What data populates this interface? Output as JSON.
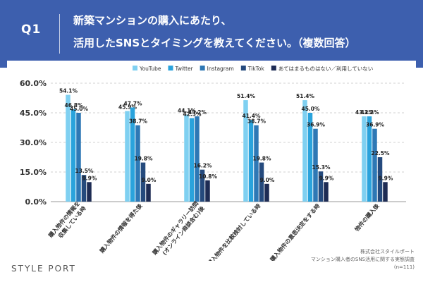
{
  "header": {
    "q_label": "Q1",
    "title_line1": "新築マンションの購入にあたり、",
    "title_line2": "活用したSNSとタイミングを教えてください。（複数回答）"
  },
  "footer": {
    "logo": "STYLE PORT",
    "company": "株式会社スタイルポート",
    "survey": "マンション購入者のSNS活用に関する実態調査",
    "sample": "(n=111)"
  },
  "colors": {
    "header_bg": "#3d5fae",
    "youtube": "#7fd0f1",
    "twitter": "#2aa3dc",
    "instagram": "#2e78b5",
    "tiktok": "#254a7d",
    "none": "#1e2c54"
  },
  "chart_data": {
    "type": "bar",
    "categories": [
      "購入物件の情報を\n収集している時",
      "購入物件の情報を得た後",
      "購入物件のギャラリー訪問\n(オンライン商談含む)後",
      "購入物件を比較検討している時",
      "購入物件の意思決定をする時",
      "物件の購入後"
    ],
    "series": [
      {
        "name": "YouTube",
        "color": "#7fd0f1",
        "values": [
          54.1,
          45.9,
          44.1,
          51.4,
          51.4,
          43.2
        ]
      },
      {
        "name": "Twitter",
        "color": "#2aa3dc",
        "values": [
          46.8,
          47.7,
          42.3,
          41.4,
          45.0,
          43.2
        ]
      },
      {
        "name": "Instagram",
        "color": "#2e78b5",
        "values": [
          45.0,
          38.7,
          43.2,
          38.7,
          36.9,
          36.9
        ]
      },
      {
        "name": "TikTok",
        "color": "#254a7d",
        "values": [
          13.5,
          19.8,
          16.2,
          19.8,
          15.3,
          22.5
        ]
      },
      {
        "name": "あてはまるものはない／利用していない",
        "color": "#1e2c54",
        "values": [
          9.9,
          9.0,
          10.8,
          9.0,
          9.9,
          9.9
        ]
      }
    ],
    "value_labels": [
      [
        "54.1%",
        "46.8%",
        "45.0%",
        "13.5%",
        "9.9%"
      ],
      [
        "45.9%",
        "47.7%",
        "38.7%",
        "19.8%",
        "9.0%"
      ],
      [
        "44.1%",
        "42.3%",
        "43.2%",
        "16.2%",
        "10.8%"
      ],
      [
        "51.4%",
        "41.4%",
        "38.7%",
        "19.8%",
        "9.0%"
      ],
      [
        "51.4%",
        "45.0%",
        "36.9%",
        "15.3%",
        "9.9%"
      ],
      [
        "43.2%",
        "43.2%",
        "36.9%",
        "22.5%",
        "9.9%"
      ]
    ],
    "yticks": [
      0,
      15,
      30,
      45,
      60
    ],
    "ytick_labels": [
      "0.0%",
      "15.0%",
      "30.0%",
      "45.0%",
      "60.0%"
    ],
    "ylim": [
      0,
      60
    ],
    "grid": true,
    "legend_position": "top-right"
  }
}
